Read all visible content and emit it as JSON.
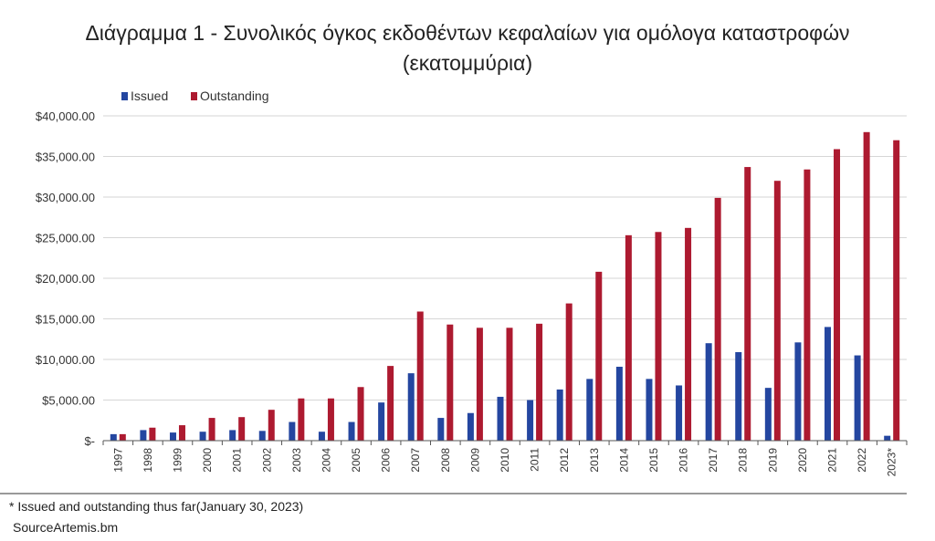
{
  "title": {
    "line1": "Διάγραμμα 1 - Συνολικός όγκος εκδοθέντων κεφαλαίων για ομόλογα καταστροφών",
    "line2": "(εκατομμύρια)"
  },
  "footnote": "* Issued and outstanding thus far(January 30, 2023)",
  "source": "SourceArtemis.bm",
  "colors": {
    "issued": "#2446a0",
    "outstanding": "#ad1a30",
    "grid": "#d6d6d6",
    "axis": "#555555"
  },
  "chart_data": {
    "type": "bar",
    "title": "Διάγραμμα 1 - Συνολικός όγκος εκδοθέντων κεφαλαίων για ομόλογα καταστροφών (εκατομμύρια)",
    "categories": [
      "1997",
      "1998",
      "1999",
      "2000",
      "2001",
      "2002",
      "2003",
      "2004",
      "2005",
      "2006",
      "2007",
      "2008",
      "2009",
      "2010",
      "2011",
      "2012",
      "2013",
      "2014",
      "2015",
      "2016",
      "2017",
      "2018",
      "2019",
      "2020",
      "2021",
      "2022",
      "2023*"
    ],
    "series": [
      {
        "name": "Issued",
        "values": [
          800,
          1300,
          1000,
          1100,
          1300,
          1200,
          2300,
          1100,
          2300,
          4700,
          8300,
          2800,
          3400,
          5400,
          5000,
          6300,
          7600,
          9100,
          7600,
          6800,
          12000,
          10900,
          6500,
          12100,
          14000,
          10500,
          600
        ]
      },
      {
        "name": "Outstanding",
        "values": [
          800,
          1600,
          1900,
          2800,
          2900,
          3800,
          5200,
          5200,
          6600,
          9200,
          15900,
          14300,
          13900,
          13900,
          14400,
          16900,
          20800,
          25300,
          25700,
          26200,
          29900,
          33700,
          32000,
          33400,
          35900,
          38000,
          37000
        ]
      }
    ],
    "yticks": [
      "$-",
      "$5,000.00",
      "$10,000.00",
      "$15,000.00",
      "$20,000.00",
      "$25,000.00",
      "$30,000.00",
      "$35,000.00",
      "$40,000.00"
    ],
    "ylim": [
      0,
      40000
    ],
    "ystep": 5000,
    "xlabel": "",
    "ylabel": "",
    "grid": true,
    "legend": "top-left"
  }
}
